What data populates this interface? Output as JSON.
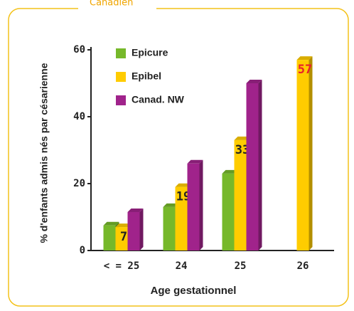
{
  "header_fragment": "Canadien",
  "chart_data": {
    "type": "bar",
    "y_label": "% d'enfants admis nés par césarienne",
    "x_label": "Age gestationnel",
    "categories": [
      "< = 25",
      "24",
      "25",
      "26"
    ],
    "series": [
      {
        "name": "Epicure",
        "color": "#76b82a",
        "values": [
          7.5,
          13,
          23,
          null
        ]
      },
      {
        "name": "Epibel",
        "color": "#ffcc00",
        "values": [
          7,
          19,
          33,
          57
        ],
        "show_labels": true,
        "label_colors": [
          "#222222",
          "#222222",
          "#222222",
          "#e8212b"
        ]
      },
      {
        "name": "Canad. NW",
        "color": "#a0238b",
        "values": [
          11.5,
          26,
          50,
          null
        ]
      }
    ],
    "ylim": [
      0,
      60
    ],
    "yticks": [
      0,
      20,
      40,
      60
    ],
    "legend": "upper left"
  }
}
